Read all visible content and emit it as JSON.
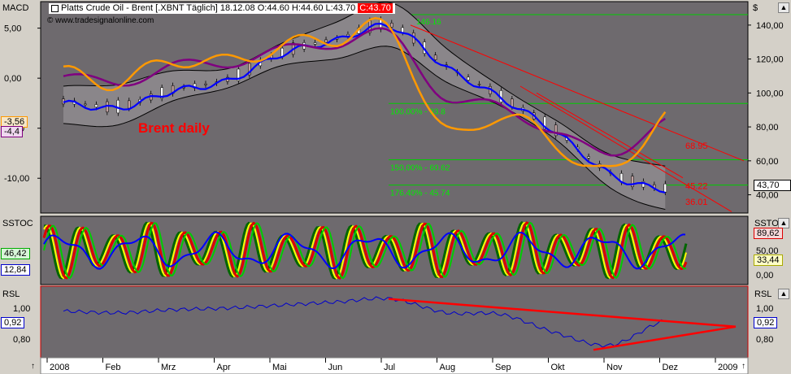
{
  "header": {
    "instrument": "Platts Crude Oil - Brent [.XBNT  Täglich] 18.12.08",
    "ohlc_open": "O:44.60",
    "ohlc_high": "H:44.60",
    "ohlc_low": "L:43.70",
    "ohlc_close": "C:43.70",
    "website": "www.tradesignalonline.com",
    "currency": "$"
  },
  "annotation": "Brent daily",
  "panels": {
    "macd": {
      "title": "MACD",
      "left_ticks": [
        "5,00",
        "0,00",
        "-5,00",
        "-10,00"
      ],
      "left_tick_values": [
        5,
        0,
        -5,
        -10
      ],
      "readout_1": "-3,56",
      "readout_2": "-4,4"
    },
    "price": {
      "right_ticks": [
        "140,00",
        "120,00",
        "100,00",
        "80,00",
        "60,00",
        "40,00"
      ],
      "right_tick_values": [
        140,
        120,
        100,
        80,
        60,
        40
      ],
      "last_price": "43,70",
      "fib_levels": [
        {
          "label": "",
          "value": 146.16
        },
        {
          "label": "100,00% - 93.8",
          "value": 93.8
        },
        {
          "label": "150,00% - 60.62",
          "value": 60.62
        },
        {
          "label": "176,40% - 45.74",
          "value": 45.74
        }
      ],
      "annotations": [
        {
          "text": "68.95",
          "value": 68.95
        },
        {
          "text": "45.22",
          "value": 45.22
        },
        {
          "text": "36.01",
          "value": 36.01
        }
      ]
    },
    "sstoc": {
      "title": "SSTOC",
      "left_readout_1": "46,42",
      "left_readout_2": "12,84",
      "right_title": "SSTOC",
      "right_readout_1": "89,62",
      "right_readout_2": "33,44",
      "right_ticks": [
        "50,00",
        "0,00"
      ]
    },
    "rsl": {
      "title": "RSL",
      "left_ticks": [
        "1,00",
        "0,80"
      ],
      "left_readout": "0,92",
      "right_title": "RSL",
      "right_ticks": [
        "1,00",
        "0,80"
      ],
      "right_readout": "0,92"
    }
  },
  "x_axis": {
    "labels": [
      "2008",
      "Feb",
      "Mrz",
      "Apr",
      "Mai",
      "Jun",
      "Jul",
      "Aug",
      "Sep",
      "Okt",
      "Nov",
      "Dez",
      "2009"
    ]
  },
  "colors": {
    "panel_bg": "#6e6a6e",
    "chrome": "#d4d0c8",
    "macd_fast": "#ff9900",
    "macd_slow": "#800080",
    "price_ma": "#0000ff",
    "fib_line": "#00cc00",
    "trend_line": "#ff0000",
    "stoch_red": "#dd0000",
    "stoch_green": "#00cc00",
    "stoch_yellow": "#ffff00",
    "rsl_line": "#0000cc",
    "annotation_text": "#ff0000"
  },
  "chart_data": {
    "type": "line",
    "x": [
      "2008",
      "Feb",
      "Mrz",
      "Apr",
      "Mai",
      "Jun",
      "Jul",
      "Aug",
      "Sep",
      "Okt",
      "Nov",
      "Dez"
    ],
    "series": [
      {
        "values": [
          95,
          92,
          102,
          108,
          124,
          132,
          140,
          116,
          98,
          78,
          53,
          44
        ]
      },
      {
        "values": [
          0.5,
          -0.4,
          1.8,
          1.6,
          3.2,
          4.0,
          4.6,
          -5.5,
          -3.6,
          -6.5,
          -9.5,
          -3.56
        ]
      },
      {
        "values": [
          0.2,
          -0.5,
          1.2,
          1.5,
          2.8,
          3.5,
          4.2,
          -2.0,
          -2.8,
          -5.5,
          -7.5,
          -4.4
        ]
      },
      {
        "values": [
          0.98,
          0.97,
          0.99,
          1.0,
          1.02,
          1.04,
          1.06,
          0.97,
          0.96,
          0.84,
          0.76,
          0.92
        ]
      }
    ],
    "price_ylim": [
      35,
      150
    ],
    "macd_ylim": [
      -12.5,
      7
    ],
    "rsl_ylim": [
      0.7,
      1.1
    ],
    "grid": false,
    "legend": "none"
  }
}
